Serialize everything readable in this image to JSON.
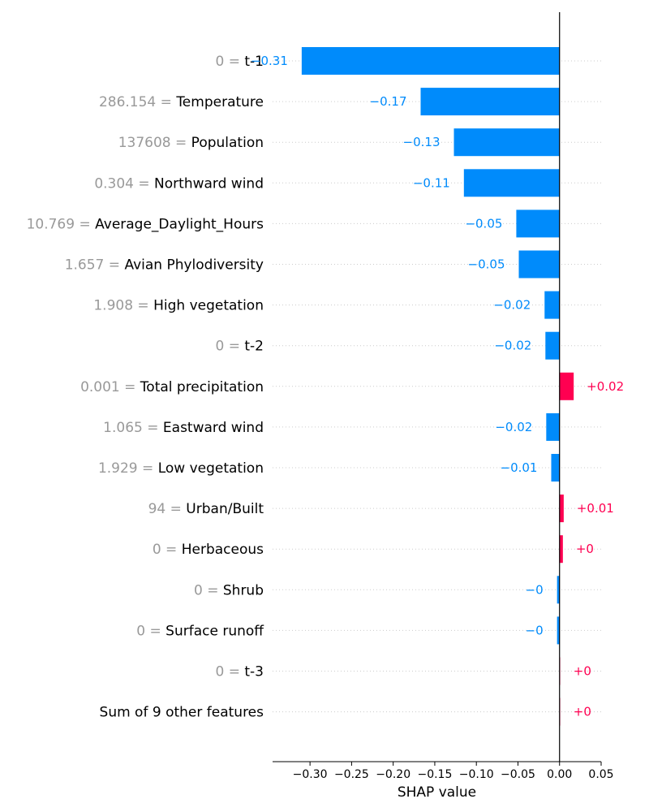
{
  "chart_data": {
    "type": "bar",
    "orientation": "horizontal",
    "xlabel": "SHAP value",
    "xlim": [
      -0.345,
      0.05
    ],
    "xticks": [
      -0.3,
      -0.25,
      -0.2,
      -0.15,
      -0.1,
      -0.05,
      0.0,
      0.05
    ],
    "xtick_labels": [
      "−0.30",
      "−0.25",
      "−0.20",
      "−0.15",
      "−0.10",
      "−0.05",
      "0.00",
      "0.05"
    ],
    "grid": "dotted horizontal",
    "colors": {
      "negative": "#008bfb",
      "positive": "#ff0051",
      "faded_positive": "#ffc3d5",
      "feature_value_text": "#999999",
      "axis": "#000000"
    },
    "rows": [
      {
        "feature_value": "0",
        "feature": "t-1",
        "value": -0.31,
        "label": "−0.31"
      },
      {
        "feature_value": "286.154",
        "feature": "Temperature",
        "value": -0.167,
        "label": "−0.17"
      },
      {
        "feature_value": "137608",
        "feature": "Population",
        "value": -0.127,
        "label": "−0.13"
      },
      {
        "feature_value": "0.304",
        "feature": "Northward wind",
        "value": -0.115,
        "label": "−0.11"
      },
      {
        "feature_value": "10.769",
        "feature": "Average_Daylight_Hours",
        "value": -0.052,
        "label": "−0.05"
      },
      {
        "feature_value": "1.657",
        "feature": "Avian Phylodiversity",
        "value": -0.049,
        "label": "−0.05"
      },
      {
        "feature_value": "1.908",
        "feature": "High vegetation",
        "value": -0.018,
        "label": "−0.02"
      },
      {
        "feature_value": "0",
        "feature": "t-2",
        "value": -0.017,
        "label": "−0.02"
      },
      {
        "feature_value": "0.001",
        "feature": "Total precipitation",
        "value": 0.017,
        "label": "+0.02"
      },
      {
        "feature_value": "1.065",
        "feature": "Eastward wind",
        "value": -0.016,
        "label": "−0.02"
      },
      {
        "feature_value": "1.929",
        "feature": "Low vegetation",
        "value": -0.01,
        "label": "−0.01"
      },
      {
        "feature_value": "94",
        "feature": "Urban/Built",
        "value": 0.005,
        "label": "+0.01"
      },
      {
        "feature_value": "0",
        "feature": "Herbaceous",
        "value": 0.004,
        "label": "+0"
      },
      {
        "feature_value": "0",
        "feature": "Shrub",
        "value": -0.003,
        "label": "−0"
      },
      {
        "feature_value": "0",
        "feature": "Surface runoff",
        "value": -0.003,
        "label": "−0"
      },
      {
        "feature_value": "0",
        "feature": "t-3",
        "value": 0.001,
        "label": "+0"
      },
      {
        "feature_value": "",
        "feature": "Sum of 9 other features",
        "value": 0.001,
        "label": "+0"
      }
    ]
  }
}
